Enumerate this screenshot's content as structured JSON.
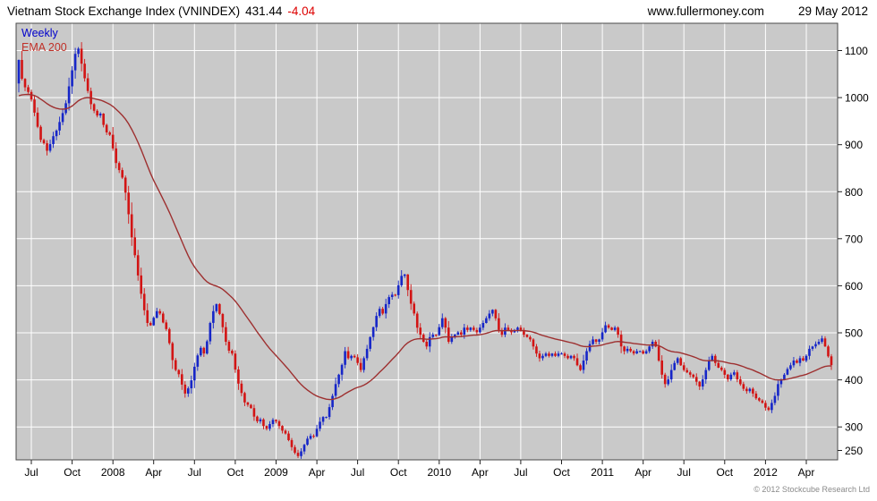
{
  "header": {
    "title": "Vietnam Stock Exchange Index (VNINDEX)",
    "last_value": "431.44",
    "change": "-4.04",
    "website": "www.fullermoney.com",
    "date": "29 May 2012"
  },
  "legend": {
    "timeframe_label": "Weekly",
    "overlay_label": "EMA 200"
  },
  "footer": {
    "copyright": "© 2012 Stockcube Research Ltd"
  },
  "colors": {
    "up_candle": "#1626c8",
    "down_candle": "#d21414",
    "ema_line": "#9e3030",
    "plot_bg": "#c9c9c9",
    "grid": "#ffffff",
    "plot_border": "#4a4a4a",
    "tick": "#222222",
    "change_negative": "#dd0000",
    "legend_weekly": "#0000cc",
    "legend_ema": "#c03028"
  },
  "chart_data": {
    "type": "candlestick",
    "title": "Vietnam Stock Exchange Index (VNINDEX) 431.44 -4.04",
    "timeframe": "Weekly",
    "overlay": "EMA 200",
    "x_range": [
      "Jun 2007",
      "May 2012"
    ],
    "value_min": 230,
    "value_max": 1158,
    "grid_on": true,
    "legend_position": "top-left",
    "y_ticks": [
      {
        "value": 250,
        "label": "250",
        "grid": false
      },
      {
        "value": 300,
        "label": "300",
        "grid": true
      },
      {
        "value": 400,
        "label": "400",
        "grid": true
      },
      {
        "value": 500,
        "label": "500",
        "grid": true
      },
      {
        "value": 600,
        "label": "600",
        "grid": true
      },
      {
        "value": 700,
        "label": "700",
        "grid": true
      },
      {
        "value": 800,
        "label": "800",
        "grid": true
      },
      {
        "value": 900,
        "label": "900",
        "grid": true
      },
      {
        "value": 1000,
        "label": "1000",
        "grid": true
      },
      {
        "value": 1100,
        "label": "1100",
        "grid": true
      }
    ],
    "x_ticks": [
      {
        "label": "Jul",
        "week": 4
      },
      {
        "label": "Oct",
        "week": 17
      },
      {
        "label": "2008",
        "week": 30
      },
      {
        "label": "Apr",
        "week": 43
      },
      {
        "label": "Jul",
        "week": 56
      },
      {
        "label": "Oct",
        "week": 69
      },
      {
        "label": "2009",
        "week": 82
      },
      {
        "label": "Apr",
        "week": 95
      },
      {
        "label": "Jul",
        "week": 108
      },
      {
        "label": "Oct",
        "week": 121
      },
      {
        "label": "2010",
        "week": 134
      },
      {
        "label": "Apr",
        "week": 147
      },
      {
        "label": "Jul",
        "week": 160
      },
      {
        "label": "Oct",
        "week": 173
      },
      {
        "label": "2011",
        "week": 186
      },
      {
        "label": "Apr",
        "week": 199
      },
      {
        "label": "Jul",
        "week": 212
      },
      {
        "label": "Oct",
        "week": 225
      },
      {
        "label": "2012",
        "week": 238
      },
      {
        "label": "Apr",
        "week": 251
      }
    ],
    "weeks": 260,
    "first_open": 1030,
    "last_close": 431.44,
    "last_change": -4.04,
    "closes": [
      1080,
      1040,
      1022,
      1012,
      996,
      968,
      938,
      910,
      903,
      887,
      901,
      918,
      930,
      948,
      967,
      988,
      1024,
      1058,
      1093,
      1104,
      1072,
      1041,
      1014,
      986,
      972,
      962,
      966,
      942,
      926,
      921,
      892,
      861,
      846,
      830,
      798,
      752,
      703,
      665,
      622,
      583,
      548,
      521,
      516,
      532,
      546,
      541,
      522,
      508,
      478,
      442,
      421,
      412,
      390,
      371,
      382,
      399,
      428,
      452,
      468,
      456,
      482,
      521,
      546,
      561,
      540,
      512,
      481,
      462,
      456,
      422,
      392,
      372,
      352,
      347,
      340,
      322,
      312,
      316,
      302,
      296,
      306,
      315,
      312,
      302,
      292,
      286,
      272,
      257,
      245,
      238,
      248,
      262,
      275,
      281,
      280,
      296,
      311,
      321,
      321,
      342,
      366,
      391,
      411,
      432,
      461,
      446,
      451,
      448,
      436,
      421,
      446,
      466,
      491,
      512,
      536,
      551,
      541,
      561,
      576,
      581,
      580,
      601,
      621,
      624,
      591,
      562,
      541,
      511,
      496,
      481,
      471,
      491,
      496,
      495,
      512,
      531,
      511,
      481,
      491,
      496,
      501,
      496,
      511,
      506,
      511,
      506,
      501,
      511,
      521,
      531,
      541,
      549,
      531,
      506,
      496,
      511,
      506,
      501,
      506,
      511,
      506,
      496,
      491,
      486,
      471,
      456,
      446,
      451,
      456,
      451,
      456,
      451,
      456,
      456,
      451,
      446,
      451,
      446,
      431,
      421,
      441,
      461,
      476,
      486,
      481,
      486,
      501,
      516,
      511,
      506,
      511,
      496,
      471,
      461,
      466,
      461,
      456,
      461,
      461,
      456,
      461,
      471,
      481,
      471,
      441,
      411,
      391,
      401,
      421,
      436,
      446,
      431,
      421,
      416,
      411,
      406,
      396,
      386,
      401,
      421,
      441,
      451,
      436,
      426,
      421,
      411,
      401,
      411,
      416,
      401,
      391,
      381,
      376,
      381,
      371,
      361,
      356,
      351,
      341,
      336,
      351,
      366,
      391,
      401,
      411,
      423,
      431,
      441,
      436,
      446,
      441,
      451,
      466,
      471,
      476,
      481,
      488,
      471,
      450,
      431.44
    ],
    "ema": {
      "period_weeks": 40,
      "seed": 1000
    }
  }
}
